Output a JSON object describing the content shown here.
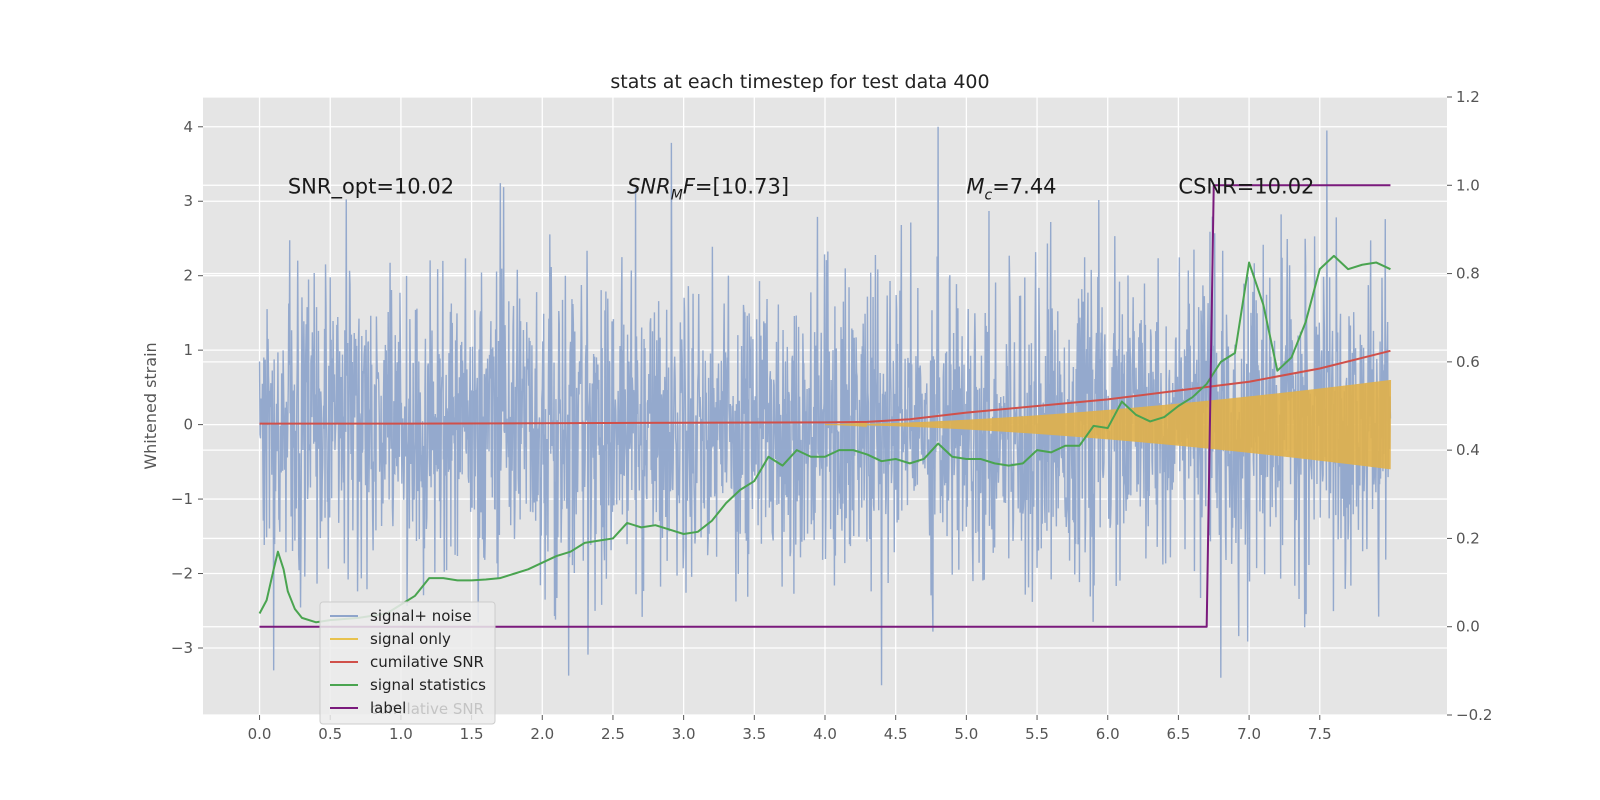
{
  "chart_data": {
    "type": "line",
    "title": "stats at each timestep for test data 400",
    "ylabel": "Whitened strain",
    "ylabel_right": "",
    "xlabel": "",
    "xlim": [
      -0.4,
      8.4
    ],
    "ylim": [
      -3.9,
      4.4
    ],
    "ylim_right": [
      -0.2,
      1.2
    ],
    "x_ticks": [
      0.0,
      0.5,
      1.0,
      1.5,
      2.0,
      2.5,
      3.0,
      3.5,
      4.0,
      4.5,
      5.0,
      5.5,
      6.0,
      6.5,
      7.0,
      7.5
    ],
    "x_tick_labels": [
      "0.0",
      "0.5",
      "1.0",
      "1.5",
      "2.0",
      "2.5",
      "3.0",
      "3.5",
      "4.0",
      "4.5",
      "5.0",
      "5.5",
      "6.0",
      "6.5",
      "7.0",
      "7.5"
    ],
    "y_ticks": [
      -3,
      -2,
      -1,
      0,
      1,
      2,
      3,
      4
    ],
    "y_tick_labels": [
      "−3",
      "−2",
      "−1",
      "0",
      "1",
      "2",
      "3",
      "4"
    ],
    "y_ticks_right": [
      -0.2,
      0.0,
      0.2,
      0.4,
      0.6,
      0.8,
      1.0,
      1.2
    ],
    "y_tick_labels_right": [
      "−0.2",
      "0.0",
      "0.2",
      "0.4",
      "0.6",
      "0.8",
      "1.0",
      "1.2"
    ],
    "grid": true,
    "legend_position": "lower-left",
    "annotations": [
      {
        "text": "SNR_opt=10.02",
        "x": 0.2,
        "y": 3.2
      },
      {
        "text": "SNR_MF=[10.73]",
        "x": 2.6,
        "y": 3.2
      },
      {
        "text": "M_c=7.44",
        "x": 5.0,
        "y": 3.2
      },
      {
        "text": "CSNR=10.02",
        "x": 6.5,
        "y": 3.2
      }
    ],
    "series": [
      {
        "name": "signal+ noise",
        "axis": "left",
        "color": "#8fa5cb",
        "kind": "noise",
        "x_range": [
          0.0,
          8.0
        ],
        "sigma": 1.0,
        "notable_peaks": [
          {
            "x": 4.8,
            "y": 4.0
          },
          {
            "x": 7.55,
            "y": 3.95
          },
          {
            "x": 4.4,
            "y": -3.5
          },
          {
            "x": 6.8,
            "y": -3.4
          },
          {
            "x": 0.1,
            "y": -3.3
          }
        ]
      },
      {
        "name": "signal only",
        "axis": "left",
        "color": "#e0b04a",
        "kind": "chirp",
        "x_range": [
          4.0,
          8.0
        ],
        "amplitude_end": 0.6
      },
      {
        "name": "cumilative SNR",
        "axis": "right",
        "color": "#d0504a",
        "x": [
          0.0,
          1.0,
          2.0,
          3.0,
          4.0,
          4.3,
          4.6,
          5.0,
          5.5,
          6.0,
          6.5,
          7.0,
          7.5,
          8.0
        ],
        "y": [
          0.46,
          0.46,
          0.461,
          0.462,
          0.463,
          0.464,
          0.47,
          0.485,
          0.5,
          0.515,
          0.535,
          0.555,
          0.585,
          0.625
        ]
      },
      {
        "name": "signal statistics",
        "axis": "right",
        "color": "#4aa450",
        "x": [
          0.0,
          0.05,
          0.1,
          0.13,
          0.17,
          0.2,
          0.25,
          0.3,
          0.4,
          0.5,
          0.7,
          0.9,
          1.0,
          1.1,
          1.2,
          1.3,
          1.4,
          1.5,
          1.6,
          1.7,
          1.8,
          1.9,
          2.0,
          2.1,
          2.2,
          2.3,
          2.4,
          2.5,
          2.6,
          2.7,
          2.8,
          2.9,
          3.0,
          3.1,
          3.2,
          3.3,
          3.4,
          3.5,
          3.6,
          3.7,
          3.8,
          3.9,
          4.0,
          4.1,
          4.2,
          4.3,
          4.4,
          4.5,
          4.6,
          4.7,
          4.8,
          4.9,
          5.0,
          5.1,
          5.2,
          5.3,
          5.4,
          5.5,
          5.6,
          5.7,
          5.8,
          5.9,
          6.0,
          6.1,
          6.2,
          6.3,
          6.4,
          6.5,
          6.6,
          6.7,
          6.8,
          6.9,
          7.0,
          7.1,
          7.2,
          7.3,
          7.4,
          7.5,
          7.6,
          7.7,
          7.8,
          7.9,
          8.0
        ],
        "y": [
          0.03,
          0.06,
          0.13,
          0.17,
          0.13,
          0.08,
          0.04,
          0.02,
          0.01,
          0.015,
          0.02,
          0.03,
          0.05,
          0.07,
          0.11,
          0.11,
          0.105,
          0.105,
          0.107,
          0.11,
          0.12,
          0.13,
          0.145,
          0.16,
          0.17,
          0.19,
          0.195,
          0.2,
          0.235,
          0.225,
          0.23,
          0.22,
          0.21,
          0.215,
          0.24,
          0.28,
          0.31,
          0.33,
          0.385,
          0.365,
          0.4,
          0.385,
          0.385,
          0.4,
          0.4,
          0.39,
          0.375,
          0.38,
          0.37,
          0.38,
          0.415,
          0.385,
          0.38,
          0.38,
          0.37,
          0.365,
          0.37,
          0.4,
          0.395,
          0.41,
          0.41,
          0.455,
          0.45,
          0.51,
          0.48,
          0.465,
          0.475,
          0.5,
          0.52,
          0.55,
          0.6,
          0.62,
          0.825,
          0.73,
          0.58,
          0.61,
          0.69,
          0.81,
          0.84,
          0.81,
          0.82,
          0.825,
          0.81
        ]
      },
      {
        "name": "label",
        "axis": "right",
        "color": "#7a1a7c",
        "x": [
          0.0,
          6.7,
          6.75,
          8.0
        ],
        "y": [
          0.0,
          0.0,
          1.0,
          1.0
        ]
      }
    ],
    "legend_entries": [
      {
        "label": "signal+ noise",
        "color": "#8fa5cb"
      },
      {
        "label": "signal only",
        "color": "#e8c24e"
      },
      {
        "label": "cumilative SNR",
        "color": "#d0504a"
      },
      {
        "label": "signal statistics",
        "color": "#4aa450"
      },
      {
        "label": "label",
        "color": "#7a1a7c"
      }
    ],
    "legend_ghost_text": "cumilative SNR"
  }
}
